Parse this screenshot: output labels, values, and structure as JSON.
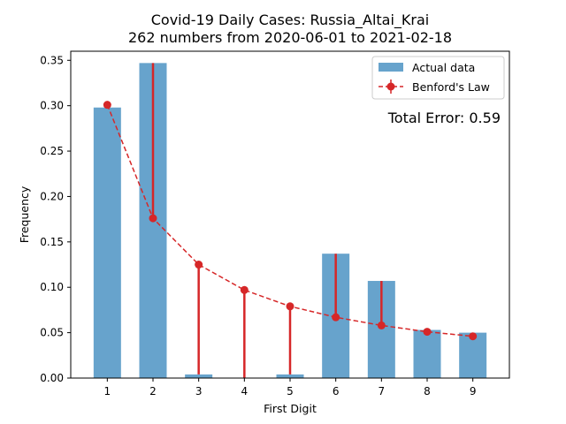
{
  "chart_data": {
    "type": "bar",
    "title": "Covid-19 Daily Cases: Russia_Altai_Krai",
    "subtitle": "262 numbers from 2020-06-01 to 2021-02-18",
    "xlabel": "First Digit",
    "ylabel": "Frequency",
    "categories": [
      "1",
      "2",
      "3",
      "4",
      "5",
      "6",
      "7",
      "8",
      "9"
    ],
    "x": [
      1,
      2,
      3,
      4,
      5,
      6,
      7,
      8,
      9
    ],
    "ylim": [
      0,
      0.36
    ],
    "yticks": [
      0.0,
      0.05,
      0.1,
      0.15,
      0.2,
      0.25,
      0.3,
      0.35
    ],
    "ytick_labels": [
      "0.00",
      "0.05",
      "0.10",
      "0.15",
      "0.20",
      "0.25",
      "0.30",
      "0.35"
    ],
    "grid": false,
    "legend_position": "top-right",
    "series": [
      {
        "name": "Actual data",
        "kind": "bar",
        "color": "#1f77b4",
        "values": [
          0.298,
          0.347,
          0.004,
          0.0,
          0.004,
          0.137,
          0.107,
          0.053,
          0.05
        ]
      },
      {
        "name": "Benford's Law",
        "kind": "line-markers",
        "color": "#d62728",
        "values": [
          0.301,
          0.176,
          0.125,
          0.097,
          0.079,
          0.067,
          0.058,
          0.051,
          0.046
        ]
      }
    ],
    "annotation": {
      "text": "Total Error: 0.59",
      "color": "#d62728"
    }
  }
}
